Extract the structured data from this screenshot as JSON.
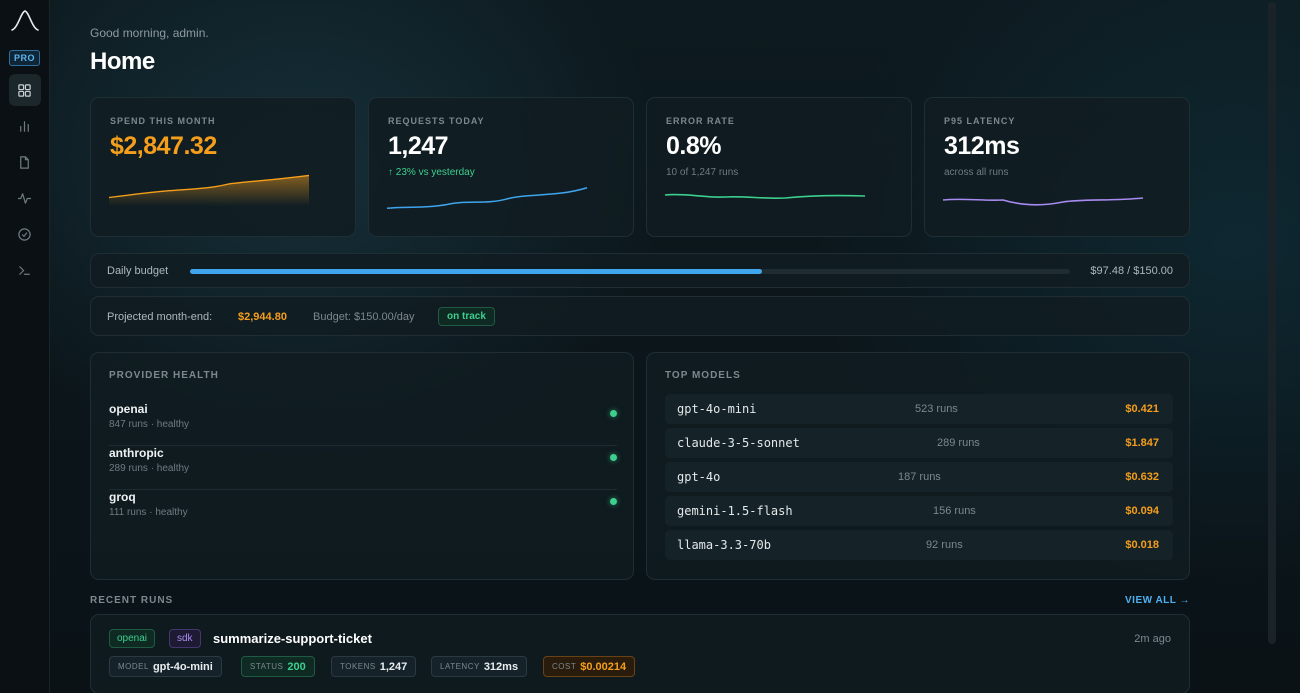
{
  "sidebar": {
    "badge": "PRO",
    "icons": [
      "logo-icon",
      "grid-icon",
      "bar-chart-icon",
      "file-icon",
      "activity-icon",
      "check-circle-icon",
      "terminal-icon"
    ]
  },
  "header": {
    "greeting": "Good morning, admin.",
    "title": "Home"
  },
  "kpis": [
    {
      "label": "SPEND THIS MONTH",
      "value": "$2,847.32",
      "sub": "",
      "color": "#f59e1c"
    },
    {
      "label": "REQUESTS TODAY",
      "value": "1,247",
      "sub": "↑ 23% vs yesterday",
      "color": "#3fa5ec"
    },
    {
      "label": "ERROR RATE",
      "value": "0.8%",
      "sub": "10 of 1,247 runs",
      "color": "#3ccf8e"
    },
    {
      "label": "P95 LATENCY",
      "value": "312ms",
      "sub": "across all runs",
      "color": "#a88bf0"
    }
  ],
  "budget": {
    "label": "Daily budget",
    "amount": "$97.48 / $150.00",
    "progress": 0.65
  },
  "projection": {
    "label": "Projected month-end:",
    "value": "$2,944.80",
    "budget": "Budget: $150.00/day",
    "status": "on track"
  },
  "provider_health": {
    "title": "PROVIDER HEALTH",
    "items": [
      {
        "name": "openai",
        "meta": "847 runs · healthy"
      },
      {
        "name": "anthropic",
        "meta": "289 runs · healthy"
      },
      {
        "name": "groq",
        "meta": "111 runs · healthy"
      }
    ]
  },
  "top_models": {
    "title": "TOP MODELS",
    "items": [
      {
        "name": "gpt-4o-mini",
        "runs": "523 runs",
        "cost": "$0.421"
      },
      {
        "name": "claude-3-5-sonnet",
        "runs": "289 runs",
        "cost": "$1.847"
      },
      {
        "name": "gpt-4o",
        "runs": "187 runs",
        "cost": "$0.632"
      },
      {
        "name": "gemini-1.5-flash",
        "runs": "156 runs",
        "cost": "$0.094"
      },
      {
        "name": "llama-3.3-70b",
        "runs": "92 runs",
        "cost": "$0.018"
      }
    ]
  },
  "recent_runs": {
    "title": "RECENT RUNS",
    "view_all": "VIEW ALL →",
    "items": [
      {
        "provider": "openai",
        "source": "sdk",
        "name": "summarize-support-ticket",
        "time": "2m ago",
        "model_label": "MODEL",
        "model": "gpt-4o-mini",
        "status_label": "STATUS",
        "status": "200",
        "tokens_label": "TOKENS",
        "tokens": "1,247",
        "latency_label": "LATENCY",
        "latency": "312ms",
        "cost_label": "COST",
        "cost": "$0.00214"
      }
    ]
  }
}
